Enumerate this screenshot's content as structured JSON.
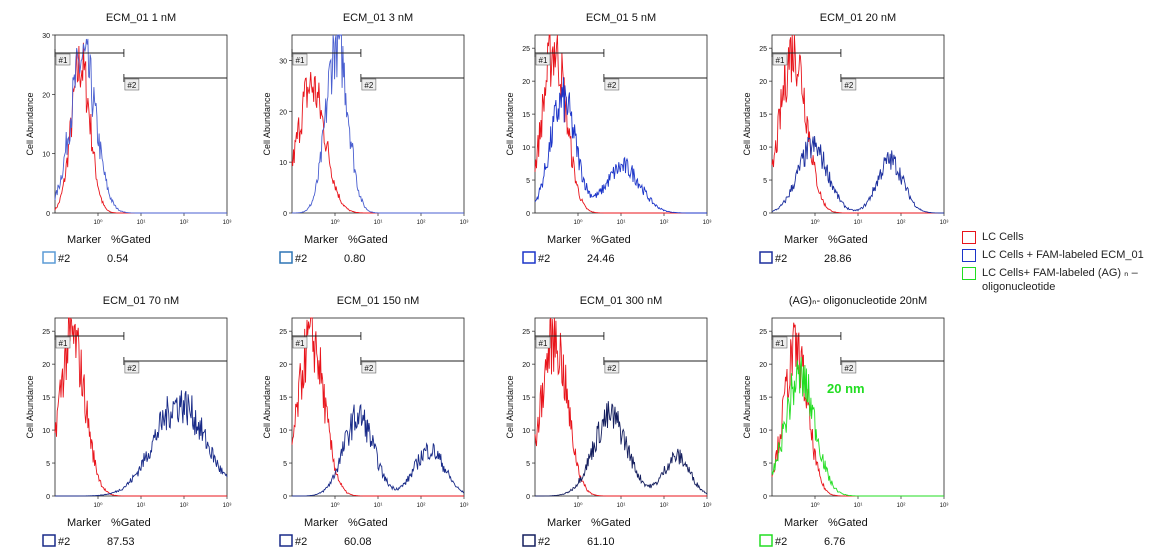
{
  "chart_data": [
    {
      "type": "line",
      "title": "ECM_01 1 nM",
      "ylabel": "Cell Abundance",
      "ylim": [
        0,
        30
      ],
      "yticks": [
        "0",
        "10",
        "20",
        "30"
      ],
      "xticks": [
        "10⁰",
        "10¹",
        "10²",
        "10³"
      ],
      "markers": [
        {
          "label": "#1",
          "from": 0.1,
          "to": 4
        },
        {
          "label": "#2",
          "from": 4,
          "to": 1000
        }
      ],
      "gated_header": [
        "Marker",
        "%Gated"
      ],
      "gated": {
        "marker": "#2",
        "value": "0.54"
      },
      "series": [
        {
          "color": "#e8141b",
          "peak_log": -0.4,
          "peak": 25,
          "width": 0.22,
          "tail": 0.0
        },
        {
          "color": "#4a5fd0",
          "peak_log": -0.35,
          "peak": 26,
          "width": 0.3,
          "tail": 0.0
        }
      ],
      "box_color": "#5b9bd5"
    },
    {
      "type": "line",
      "title": "ECM_01 3 nM",
      "ylabel": "Cell Abundance",
      "ylim": [
        0,
        35
      ],
      "yticks": [
        "0",
        "10",
        "20",
        "30"
      ],
      "xticks": [
        "10⁰",
        "10¹",
        "10²",
        "10³"
      ],
      "markers": [
        {
          "label": "#1",
          "from": 0.1,
          "to": 4
        },
        {
          "label": "#2",
          "from": 4,
          "to": 1000
        }
      ],
      "gated_header": [
        "Marker",
        "%Gated"
      ],
      "gated": {
        "marker": "#2",
        "value": "0.80"
      },
      "series": [
        {
          "color": "#e8141b",
          "peak_log": -0.55,
          "peak": 25,
          "width": 0.32,
          "tail": 0.0
        },
        {
          "color": "#4a5fd0",
          "peak_log": 0.05,
          "peak": 34,
          "width": 0.25,
          "tail": 0.0
        }
      ],
      "box_color": "#2e75b6"
    },
    {
      "type": "line",
      "title": "ECM_01 5 nM",
      "ylabel": "Cell Abundance",
      "ylim": [
        0,
        27
      ],
      "yticks": [
        "0",
        "5",
        "10",
        "15",
        "20",
        "25"
      ],
      "xticks": [
        "10⁰",
        "10¹",
        "10²",
        "10³"
      ],
      "markers": [
        {
          "label": "#1",
          "from": 0.1,
          "to": 4
        },
        {
          "label": "#2",
          "from": 4,
          "to": 1000
        }
      ],
      "gated_header": [
        "Marker",
        "%Gated"
      ],
      "gated": {
        "marker": "#2",
        "value": "24.46"
      },
      "series": [
        {
          "color": "#e8141b",
          "peak_log": -0.55,
          "peak": 25,
          "width": 0.28,
          "tail": 0.0
        },
        {
          "color": "#1c35c9",
          "peak_log": -0.35,
          "peak": 17,
          "width": 0.3,
          "tail": 1.0,
          "peak2_log": 1.05,
          "peak2": 7,
          "width2": 0.4
        }
      ],
      "box_color": "#1c35c9"
    },
    {
      "type": "line",
      "title": "ECM_01 20 nM",
      "ylabel": "Cell Abundance",
      "ylim": [
        0,
        27
      ],
      "yticks": [
        "0",
        "5",
        "10",
        "15",
        "20",
        "25"
      ],
      "xticks": [
        "10⁰",
        "10¹",
        "10²",
        "10³"
      ],
      "markers": [
        {
          "label": "#1",
          "from": 0.1,
          "to": 4
        },
        {
          "label": "#2",
          "from": 4,
          "to": 1000
        }
      ],
      "gated_header": [
        "Marker",
        "%Gated"
      ],
      "gated": {
        "marker": "#2",
        "value": "28.86"
      },
      "series": [
        {
          "color": "#e8141b",
          "peak_log": -0.5,
          "peak": 25,
          "width": 0.3,
          "tail": 0.0
        },
        {
          "color": "#1c2f9e",
          "peak_log": -0.05,
          "peak": 10,
          "width": 0.35,
          "tail": 1.0,
          "peak2_log": 1.75,
          "peak2": 8,
          "width2": 0.3
        }
      ],
      "box_color": "#1c2f9e"
    },
    {
      "type": "line",
      "title": "ECM_01 70 nM",
      "ylabel": "Cell Abundance",
      "ylim": [
        0,
        27
      ],
      "yticks": [
        "0",
        "5",
        "10",
        "15",
        "20",
        "25"
      ],
      "xticks": [
        "10⁰",
        "10¹",
        "10²",
        "10³"
      ],
      "markers": [
        {
          "label": "#1",
          "from": 0.1,
          "to": 4
        },
        {
          "label": "#2",
          "from": 4,
          "to": 1000
        }
      ],
      "gated_header": [
        "Marker",
        "%Gated"
      ],
      "gated": {
        "marker": "#2",
        "value": "87.53"
      },
      "series": [
        {
          "color": "#e8141b",
          "peak_log": -0.6,
          "peak": 24,
          "width": 0.3,
          "tail": 0.0
        },
        {
          "color": "#182a88",
          "peak_log": 1.9,
          "peak": 14,
          "width": 0.6,
          "tail": 0.0
        }
      ],
      "box_color": "#182a88"
    },
    {
      "type": "line",
      "title": "ECM_01 150 nM",
      "ylabel": "Cell Abundance",
      "ylim": [
        0,
        27
      ],
      "yticks": [
        "0",
        "5",
        "10",
        "15",
        "20",
        "25"
      ],
      "xticks": [
        "10⁰",
        "10¹",
        "10²",
        "10³"
      ],
      "markers": [
        {
          "label": "#1",
          "from": 0.1,
          "to": 4
        },
        {
          "label": "#2",
          "from": 4,
          "to": 1000
        }
      ],
      "gated_header": [
        "Marker",
        "%Gated"
      ],
      "gated": {
        "marker": "#2",
        "value": "60.08"
      },
      "series": [
        {
          "color": "#e8141b",
          "peak_log": -0.55,
          "peak": 24,
          "width": 0.3,
          "tail": 0.0
        },
        {
          "color": "#182a88",
          "peak_log": 0.55,
          "peak": 12,
          "width": 0.35,
          "tail": 1.0,
          "peak2_log": 2.2,
          "peak2": 7,
          "width2": 0.35
        }
      ],
      "box_color": "#182a88"
    },
    {
      "type": "line",
      "title": "ECM_01 300 nM",
      "ylabel": "Cell Abundance",
      "ylim": [
        0,
        27
      ],
      "yticks": [
        "0",
        "5",
        "10",
        "15",
        "20",
        "25"
      ],
      "xticks": [
        "10⁰",
        "10¹",
        "10²",
        "10³"
      ],
      "markers": [
        {
          "label": "#1",
          "from": 0.1,
          "to": 4
        },
        {
          "label": "#2",
          "from": 4,
          "to": 1000
        }
      ],
      "gated_header": [
        "Marker",
        "%Gated"
      ],
      "gated": {
        "marker": "#2",
        "value": "61.10"
      },
      "series": [
        {
          "color": "#e8141b",
          "peak_log": -0.55,
          "peak": 24,
          "width": 0.3,
          "tail": 0.0
        },
        {
          "color": "#141e5e",
          "peak_log": 0.75,
          "peak": 12,
          "width": 0.4,
          "tail": 1.0,
          "peak2_log": 2.3,
          "peak2": 6,
          "width2": 0.3
        }
      ],
      "box_color": "#141e5e"
    },
    {
      "type": "line",
      "title": "(AG)ₙ- oligonucleotide 20nM",
      "ylabel": "Cell Abundance",
      "ylim": [
        0,
        27
      ],
      "yticks": [
        "0",
        "5",
        "10",
        "15",
        "20",
        "25"
      ],
      "xticks": [
        "10⁰",
        "10¹",
        "10²",
        "10³"
      ],
      "markers": [
        {
          "label": "#1",
          "from": 0.1,
          "to": 4
        },
        {
          "label": "#2",
          "from": 4,
          "to": 1000
        }
      ],
      "gated_header": [
        "Marker",
        "%Gated"
      ],
      "gated": {
        "marker": "#2",
        "value": "6.76"
      },
      "annotation": "20 nm",
      "series": [
        {
          "color": "#e8141b",
          "peak_log": -0.45,
          "peak": 22,
          "width": 0.28,
          "tail": 0.0
        },
        {
          "color": "#22dd22",
          "peak_log": -0.35,
          "peak": 18,
          "width": 0.35,
          "tail": 0.0
        }
      ],
      "box_color": "#22dd22"
    }
  ],
  "legend": [
    {
      "label": "LC Cells",
      "color": "#e8141b"
    },
    {
      "label": "LC Cells + FAM-labeled  ECM_01",
      "color": "#1c35c9"
    },
    {
      "label": "LC Cells+ FAM-labeled (AG) ₙ – oligonucleotide",
      "color": "#22dd22"
    }
  ]
}
